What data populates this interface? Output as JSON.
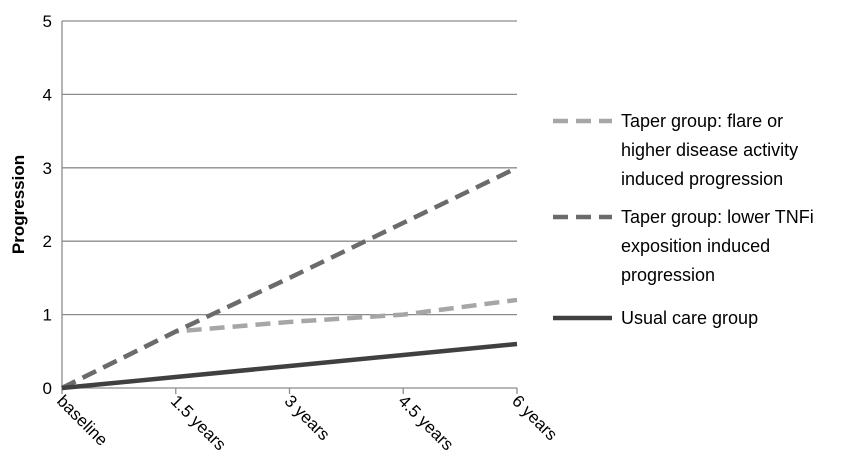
{
  "chart_data": {
    "type": "line",
    "categories": [
      "baseline",
      "1.5 years",
      "3 years",
      "4.5 years",
      "6 years"
    ],
    "ylabel": "Progression",
    "xlabel": "",
    "ylim": [
      0,
      5
    ],
    "yticks": [
      0,
      1,
      2,
      3,
      4,
      5
    ],
    "grid": true,
    "legend_position": "right",
    "series": [
      {
        "name_lines": [
          "Taper group: flare or",
          "higher disease activity",
          "induced progression"
        ],
        "values": [
          0,
          0.77,
          0.9,
          1.0,
          1.2
        ],
        "color": "#a6a6a6",
        "style": "dashed"
      },
      {
        "name_lines": [
          "Taper group: lower TNFi",
          "exposition induced",
          "progression"
        ],
        "values": [
          0,
          0.77,
          1.5,
          2.25,
          3.0
        ],
        "color": "#6b6b6b",
        "style": "dashed"
      },
      {
        "name_lines": [
          "Usual care group"
        ],
        "values": [
          0,
          0.15,
          0.3,
          0.45,
          0.6
        ],
        "color": "#404040",
        "style": "solid"
      }
    ]
  }
}
